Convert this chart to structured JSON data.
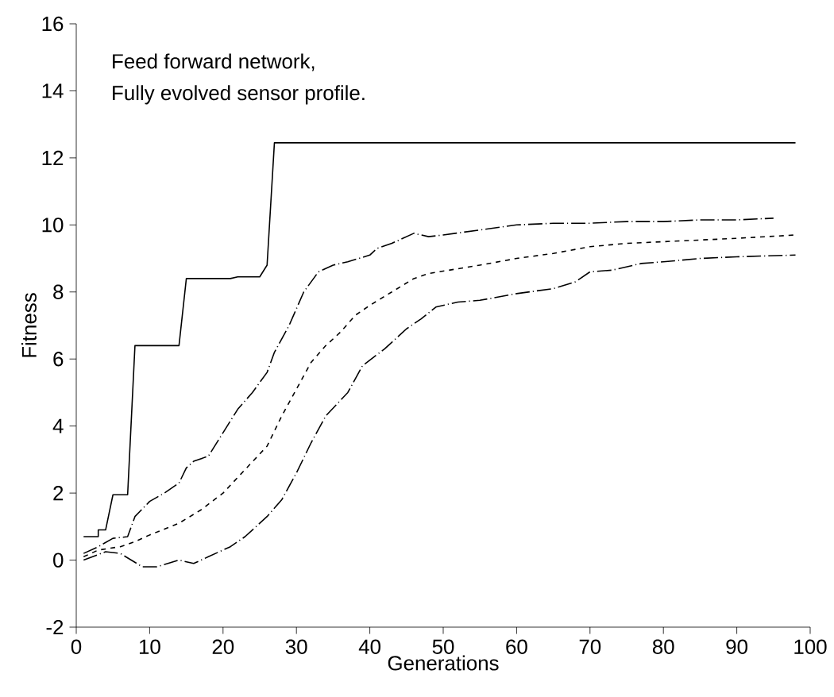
{
  "chart_data": {
    "type": "line",
    "xlabel": "Generations",
    "ylabel": "Fitness",
    "annotations": [
      "Feed forward network,",
      "Fully evolved sensor profile."
    ],
    "xlim": [
      0,
      100
    ],
    "ylim": [
      -2,
      16
    ],
    "xticks": [
      0,
      10,
      20,
      30,
      40,
      50,
      60,
      70,
      80,
      90,
      100
    ],
    "yticks": [
      -2,
      0,
      2,
      4,
      6,
      8,
      10,
      12,
      14,
      16
    ],
    "grid": false,
    "marker": "none",
    "series": [
      {
        "color": "#000000",
        "line_style": "solid",
        "x": [
          1,
          3,
          3,
          4,
          5,
          7,
          8,
          14,
          15,
          21,
          22,
          25,
          26,
          27,
          98
        ],
        "values": [
          0.7,
          0.7,
          0.9,
          0.9,
          1.95,
          1.95,
          6.4,
          6.4,
          8.4,
          8.4,
          8.45,
          8.45,
          8.8,
          12.45,
          12.45
        ]
      },
      {
        "color": "#000000",
        "line_style": "dashdot",
        "x": [
          1,
          3,
          5,
          7,
          8,
          10,
          12,
          14,
          15,
          16,
          18,
          20,
          22,
          24,
          26,
          27,
          29,
          31,
          33,
          35,
          37,
          40,
          41,
          43,
          46,
          48,
          50,
          55,
          60,
          65,
          70,
          75,
          80,
          85,
          90,
          95
        ],
        "values": [
          0.2,
          0.4,
          0.65,
          0.7,
          1.3,
          1.75,
          2.0,
          2.3,
          2.75,
          2.95,
          3.1,
          3.8,
          4.5,
          5.0,
          5.6,
          6.2,
          7.0,
          8.0,
          8.6,
          8.8,
          8.9,
          9.1,
          9.3,
          9.45,
          9.75,
          9.65,
          9.7,
          9.85,
          10.0,
          10.05,
          10.05,
          10.1,
          10.1,
          10.15,
          10.15,
          10.2
        ]
      },
      {
        "color": "#000000",
        "line_style": "dashed",
        "x": [
          1,
          3,
          6,
          8,
          10,
          14,
          17,
          20,
          23,
          26,
          28,
          30,
          32,
          34,
          36,
          38,
          40,
          43,
          46,
          48,
          55,
          60,
          65,
          70,
          75,
          80,
          90,
          98
        ],
        "values": [
          0.1,
          0.3,
          0.4,
          0.55,
          0.75,
          1.1,
          1.5,
          2.0,
          2.7,
          3.4,
          4.3,
          5.1,
          5.9,
          6.4,
          6.8,
          7.3,
          7.6,
          8.0,
          8.4,
          8.55,
          8.8,
          9.0,
          9.15,
          9.35,
          9.45,
          9.5,
          9.6,
          9.7
        ]
      },
      {
        "color": "#000000",
        "line_style": "dashdot",
        "x": [
          1,
          4,
          6,
          9,
          11,
          14,
          16,
          18,
          21,
          23,
          26,
          28,
          30,
          32,
          34,
          37,
          39,
          42,
          45,
          47,
          49,
          52,
          55,
          60,
          65,
          68,
          70,
          73,
          77,
          80,
          85,
          90,
          98
        ],
        "values": [
          0.0,
          0.25,
          0.2,
          -0.2,
          -0.2,
          0.0,
          -0.1,
          0.1,
          0.4,
          0.7,
          1.3,
          1.8,
          2.6,
          3.5,
          4.3,
          5.0,
          5.8,
          6.3,
          6.9,
          7.2,
          7.55,
          7.7,
          7.75,
          7.95,
          8.1,
          8.3,
          8.6,
          8.65,
          8.85,
          8.9,
          9.0,
          9.05,
          9.1
        ]
      }
    ]
  }
}
